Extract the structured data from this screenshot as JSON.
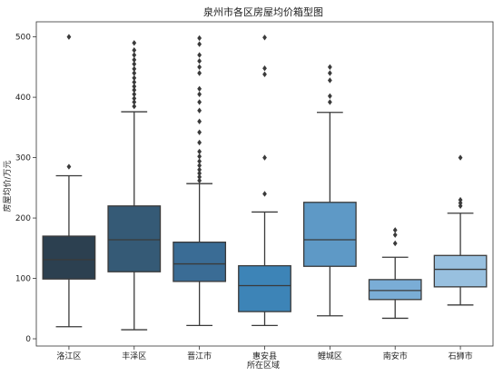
{
  "chart_data": {
    "type": "box",
    "title": "泉州市各区房屋均价箱型图",
    "xlabel": "所在区域",
    "ylabel": "房屋均价/万元",
    "ylim": [
      -12,
      525
    ],
    "yticks": [
      0,
      100,
      200,
      300,
      400,
      500
    ],
    "grid": false,
    "categories": [
      "洛江区",
      "丰泽区",
      "晋江市",
      "惠安县",
      "鲤城区",
      "南安市",
      "石狮市"
    ],
    "colors": [
      "#2c4050",
      "#355a76",
      "#3a6c95",
      "#3d84b7",
      "#5e99c6",
      "#7aadd6",
      "#98c0df"
    ],
    "boxes": [
      {
        "whisker_low": 20,
        "q1": 99,
        "median": 131,
        "q3": 170,
        "whisker_high": 270,
        "outliers": [
          285,
          500
        ]
      },
      {
        "whisker_low": 15,
        "q1": 111,
        "median": 164,
        "q3": 220,
        "whisker_high": 376,
        "outliers": [
          385,
          392,
          398,
          405,
          412,
          418,
          425,
          432,
          440,
          447,
          455,
          462,
          470,
          478,
          490
        ]
      },
      {
        "whisker_low": 22,
        "q1": 95,
        "median": 124,
        "q3": 160,
        "whisker_high": 257,
        "outliers": [
          262,
          268,
          274,
          280,
          287,
          294,
          302,
          310,
          325,
          342,
          360,
          378,
          392,
          405,
          414,
          440,
          450,
          460,
          470,
          488,
          498
        ]
      },
      {
        "whisker_low": 22,
        "q1": 45,
        "median": 88,
        "q3": 121,
        "whisker_high": 210,
        "outliers": [
          240,
          300,
          438,
          448,
          499
        ]
      },
      {
        "whisker_low": 38,
        "q1": 120,
        "median": 164,
        "q3": 226,
        "whisker_high": 375,
        "outliers": [
          392,
          402,
          428,
          440,
          450
        ]
      },
      {
        "whisker_low": 34,
        "q1": 65,
        "median": 80,
        "q3": 98,
        "whisker_high": 135,
        "outliers": [
          158,
          172,
          180
        ]
      },
      {
        "whisker_low": 56,
        "q1": 86,
        "median": 115,
        "q3": 138,
        "whisker_high": 208,
        "outliers": [
          220,
          225,
          230,
          300
        ]
      }
    ]
  }
}
